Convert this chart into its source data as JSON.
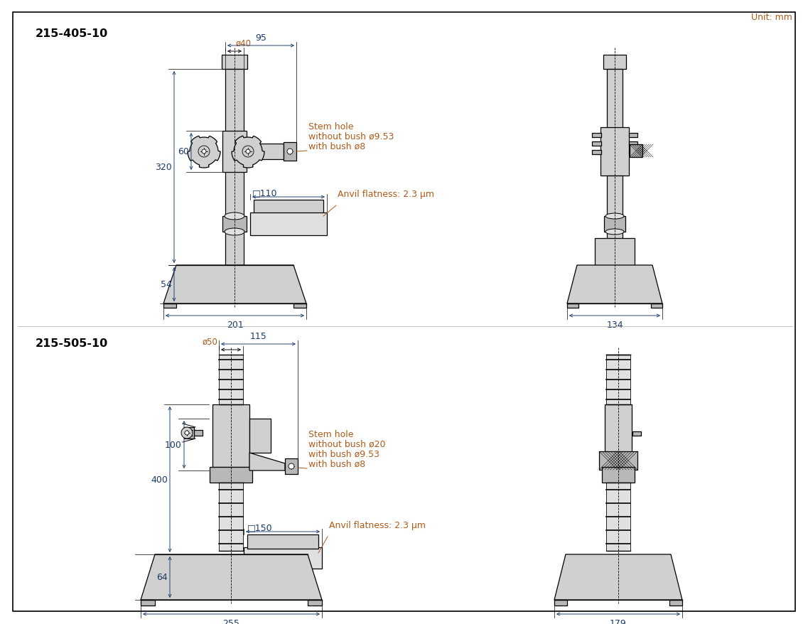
{
  "bg_color": "#ffffff",
  "annot_color": "#b05a1a",
  "dim_color": "#1a3a6a",
  "unit_text": "Unit: mm",
  "model1": "215-405-10",
  "model2": "215-505-10",
  "gray_light": "#d0d0d0",
  "gray_mid": "#b8b8b8",
  "gray_dark": "#989898",
  "gray_very_light": "#e0e0e0"
}
